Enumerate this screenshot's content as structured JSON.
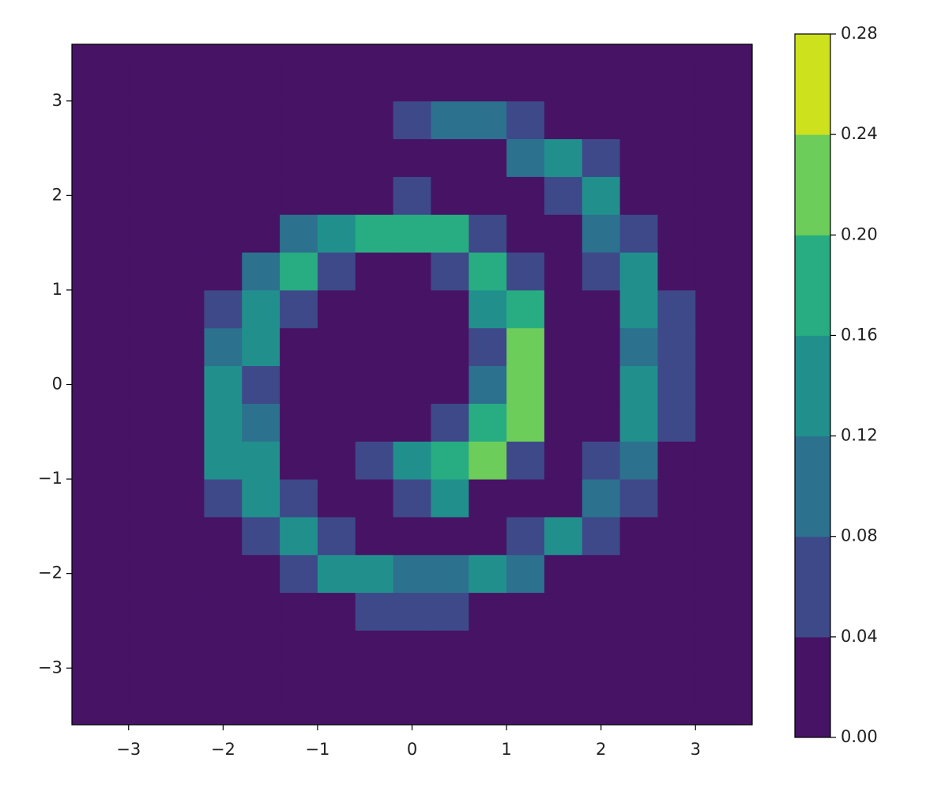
{
  "chart_data": {
    "type": "contourf",
    "xlim": [
      -3.6,
      3.6
    ],
    "ylim": [
      -3.6,
      3.6
    ],
    "xticks": [
      {
        "value": -3,
        "label": "−3"
      },
      {
        "value": -2,
        "label": "−2"
      },
      {
        "value": -1,
        "label": "−1"
      },
      0,
      1,
      2,
      3
    ],
    "yticks": [
      {
        "value": -3,
        "label": "−3"
      },
      {
        "value": -2,
        "label": "−2"
      },
      {
        "value": -1,
        "label": "−1"
      },
      0,
      1,
      2,
      3
    ],
    "x": [
      -3.2,
      -2.8,
      -2.4,
      -2.0,
      -1.6,
      -1.2,
      -0.8,
      -0.4,
      0,
      0.4,
      0.8,
      1.2,
      1.6,
      2.0,
      2.4,
      2.8,
      3.2
    ],
    "y": [
      -3.2,
      -2.8,
      -2.4,
      -2.0,
      -1.6,
      -1.2,
      -0.8,
      -0.4,
      0,
      0.4,
      0.8,
      1.2,
      1.6,
      2.0,
      2.4,
      2.8,
      3.2
    ],
    "z": [
      [
        0,
        0,
        0,
        0,
        0,
        0,
        0,
        0,
        0,
        0,
        0,
        0,
        0,
        0,
        0,
        0,
        0
      ],
      [
        0,
        0,
        0,
        0,
        0,
        0,
        0,
        0,
        0,
        0,
        0,
        0,
        0,
        0,
        0,
        0,
        0
      ],
      [
        0,
        0,
        0,
        0,
        0,
        0,
        0,
        0.06,
        0.06,
        0.04,
        0,
        0,
        0,
        0,
        0,
        0,
        0
      ],
      [
        0,
        0,
        0,
        0,
        0,
        0.06,
        0.12,
        0.14,
        0.1,
        0.1,
        0.12,
        0.1,
        0,
        0,
        0,
        0,
        0
      ],
      [
        0,
        0,
        0,
        0,
        0.06,
        0.12,
        0.06,
        0,
        0,
        0,
        0,
        0.06,
        0.14,
        0.06,
        0,
        0,
        0
      ],
      [
        0,
        0,
        0,
        0.06,
        0.14,
        0.06,
        0,
        0,
        0.06,
        0.14,
        0,
        0,
        0,
        0.1,
        0.06,
        0,
        0
      ],
      [
        0,
        0,
        0,
        0.12,
        0.14,
        0,
        0,
        0.06,
        0.12,
        0.18,
        0.2,
        0.06,
        0,
        0.06,
        0.1,
        0,
        0
      ],
      [
        0,
        0,
        0,
        0.14,
        0.1,
        0,
        0,
        0,
        0,
        0.06,
        0.16,
        0.22,
        0,
        0,
        0.12,
        0.06,
        0
      ],
      [
        0,
        0,
        0,
        0.12,
        0.06,
        0,
        0,
        0,
        0,
        0,
        0.1,
        0.2,
        0,
        0,
        0.12,
        0.06,
        0
      ],
      [
        0,
        0,
        0,
        0.1,
        0.12,
        0,
        0,
        0,
        0,
        0,
        0.06,
        0.22,
        0,
        0,
        0.1,
        0.06,
        0
      ],
      [
        0,
        0,
        0,
        0.06,
        0.14,
        0.06,
        0,
        0,
        0,
        0,
        0.14,
        0.18,
        0,
        0,
        0.12,
        0.04,
        0
      ],
      [
        0,
        0,
        0,
        0,
        0.1,
        0.16,
        0.06,
        0,
        0,
        0.06,
        0.16,
        0.06,
        0,
        0.06,
        0.12,
        0,
        0
      ],
      [
        0,
        0,
        0,
        0,
        0,
        0.1,
        0.14,
        0.16,
        0.16,
        0.18,
        0.06,
        0,
        0,
        0.1,
        0.06,
        0,
        0
      ],
      [
        0,
        0,
        0,
        0,
        0,
        0,
        0,
        0,
        0.06,
        0,
        0,
        0,
        0.06,
        0.12,
        0,
        0,
        0
      ],
      [
        0,
        0,
        0,
        0,
        0,
        0,
        0,
        0,
        0,
        0,
        0,
        0.1,
        0.12,
        0.06,
        0,
        0,
        0
      ],
      [
        0,
        0,
        0,
        0,
        0,
        0,
        0,
        0,
        0.06,
        0.1,
        0.1,
        0.06,
        0,
        0,
        0,
        0,
        0
      ],
      [
        0,
        0,
        0,
        0,
        0,
        0,
        0,
        0,
        0,
        0,
        0,
        0,
        0,
        0,
        0,
        0,
        0
      ]
    ],
    "levels": [
      {
        "value": 0,
        "label": "0.00"
      },
      0.04,
      0.08,
      0.12,
      0.16,
      {
        "value": 0.2,
        "label": "0.20"
      },
      0.24,
      0.28
    ],
    "colors": [
      "#471365",
      "#3e4989",
      "#2c718e",
      "#21908d",
      "#27ad81",
      "#6ccd5a",
      "#cde11d"
    ]
  }
}
